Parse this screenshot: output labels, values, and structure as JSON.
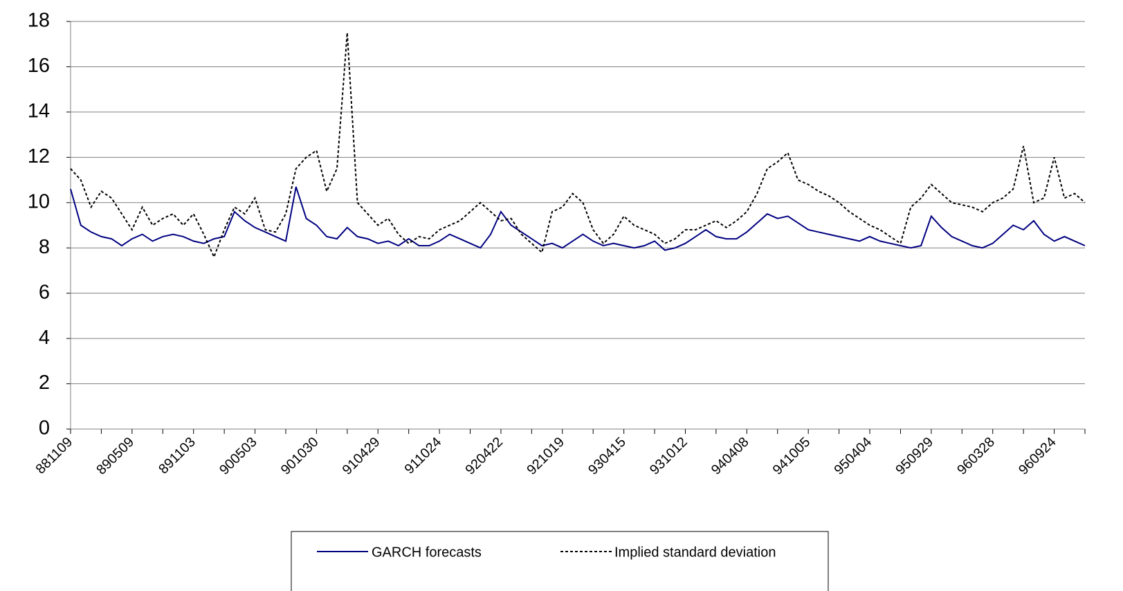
{
  "chart_data": {
    "type": "line",
    "categories": [
      "881109",
      null,
      null,
      null,
      null,
      null,
      "890509",
      null,
      null,
      null,
      null,
      null,
      "891103",
      null,
      null,
      null,
      null,
      null,
      "900503",
      null,
      null,
      null,
      null,
      null,
      "901030",
      null,
      null,
      null,
      null,
      null,
      "910429",
      null,
      null,
      null,
      null,
      null,
      "911024",
      null,
      null,
      null,
      null,
      null,
      "920422",
      null,
      null,
      null,
      null,
      null,
      "921019",
      null,
      null,
      null,
      null,
      null,
      "930415",
      null,
      null,
      null,
      null,
      null,
      "931012",
      null,
      null,
      null,
      null,
      null,
      "940408",
      null,
      null,
      null,
      null,
      null,
      "941005",
      null,
      null,
      null,
      null,
      null,
      "950404",
      null,
      null,
      null,
      null,
      null,
      "950929",
      null,
      null,
      null,
      null,
      null,
      "960328",
      null,
      null,
      null,
      null,
      null,
      "960924",
      null,
      null,
      null
    ],
    "series": [
      {
        "name": "GARCH forecasts",
        "color": "#000080",
        "dash": false,
        "values": [
          10.6,
          9.0,
          8.7,
          8.5,
          8.4,
          8.1,
          8.4,
          8.6,
          8.3,
          8.5,
          8.6,
          8.5,
          8.3,
          8.2,
          8.4,
          8.5,
          9.6,
          9.2,
          8.9,
          8.7,
          8.5,
          8.3,
          10.7,
          9.3,
          9.0,
          8.5,
          8.4,
          8.9,
          8.5,
          8.4,
          8.2,
          8.3,
          8.1,
          8.4,
          8.1,
          8.1,
          8.3,
          8.6,
          8.4,
          8.2,
          8.0,
          8.6,
          9.6,
          9.0,
          8.7,
          8.4,
          8.1,
          8.2,
          8.0,
          8.3,
          8.6,
          8.3,
          8.1,
          8.2,
          8.1,
          8.0,
          8.1,
          8.3,
          7.9,
          8.0,
          8.2,
          8.5,
          8.8,
          8.5,
          8.4,
          8.4,
          8.7,
          9.1,
          9.5,
          9.3,
          9.4,
          9.1,
          8.8,
          8.7,
          8.6,
          8.5,
          8.4,
          8.3,
          8.5,
          8.3,
          8.2,
          8.1,
          8.0,
          8.1,
          9.4,
          8.9,
          8.5,
          8.3,
          8.1,
          8.0,
          8.2,
          8.6,
          9.0,
          8.8,
          9.2,
          8.6,
          8.3,
          8.5,
          8.3,
          8.1
        ]
      },
      {
        "name": "Implied standard deviation",
        "color": "#000000",
        "dash": true,
        "values": [
          11.5,
          11.0,
          9.8,
          10.5,
          10.2,
          9.5,
          8.8,
          9.8,
          9.0,
          9.3,
          9.5,
          9.0,
          9.5,
          8.6,
          7.6,
          8.8,
          9.8,
          9.5,
          10.2,
          8.8,
          8.7,
          9.5,
          11.5,
          12.0,
          12.3,
          10.5,
          11.5,
          17.5,
          10.0,
          9.5,
          9.0,
          9.3,
          8.6,
          8.2,
          8.5,
          8.4,
          8.8,
          9.0,
          9.2,
          9.6,
          10.0,
          9.6,
          9.2,
          9.3,
          8.6,
          8.2,
          7.8,
          9.6,
          9.8,
          10.4,
          10.0,
          8.8,
          8.2,
          8.6,
          9.4,
          9.0,
          8.8,
          8.6,
          8.2,
          8.4,
          8.8,
          8.8,
          9.0,
          9.2,
          8.9,
          9.2,
          9.6,
          10.4,
          11.5,
          11.8,
          12.2,
          11.0,
          10.8,
          10.5,
          10.3,
          10.0,
          9.6,
          9.3,
          9.0,
          8.8,
          8.5,
          8.2,
          9.8,
          10.2,
          10.8,
          10.4,
          10.0,
          9.9,
          9.8,
          9.6,
          10.0,
          10.2,
          10.6,
          12.5,
          10.0,
          10.2,
          12.0,
          10.2,
          10.4,
          10.0
        ]
      }
    ],
    "ylim": [
      0,
      18
    ],
    "yticks": [
      0,
      2,
      4,
      6,
      8,
      10,
      12,
      14,
      16,
      18
    ],
    "grid": true,
    "legend": "bottom"
  }
}
